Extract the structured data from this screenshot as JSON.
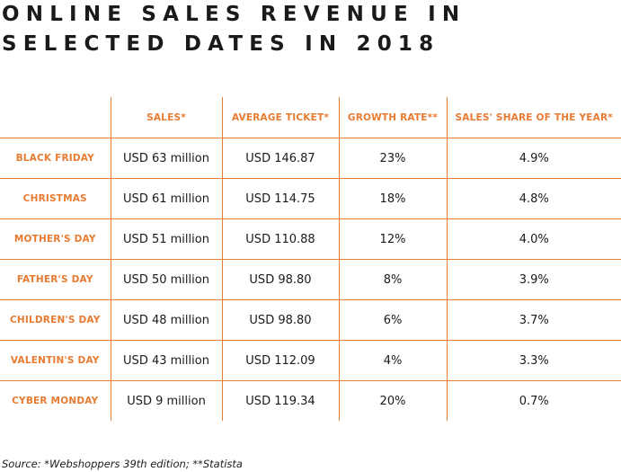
{
  "title": {
    "line1": "ONLINE SALES REVENUE IN",
    "line2": "SELECTED DATES IN 2018"
  },
  "table": {
    "headers": [
      "",
      "SALES*",
      "AVERAGE TICKET*",
      "GROWTH RATE**",
      "SALES' SHARE OF THE YEAR*"
    ],
    "rows": [
      {
        "date": "BLACK FRIDAY",
        "sales": "USD 63 million",
        "avg_ticket": "USD 146.87",
        "growth": "23%",
        "share": "4.9%"
      },
      {
        "date": "CHRISTMAS",
        "sales": "USD 61 million",
        "avg_ticket": "USD 114.75",
        "growth": "18%",
        "share": "4.8%"
      },
      {
        "date": "MOTHER'S DAY",
        "sales": "USD 51 million",
        "avg_ticket": "USD 110.88",
        "growth": "12%",
        "share": "4.0%"
      },
      {
        "date": "FATHER'S DAY",
        "sales": "USD 50 million",
        "avg_ticket": "USD 98.80",
        "growth": "8%",
        "share": "3.9%"
      },
      {
        "date": "CHILDREN'S DAY",
        "sales": "USD 48 million",
        "avg_ticket": "USD 98.80",
        "growth": "6%",
        "share": "3.7%"
      },
      {
        "date": "VALENTIN'S DAY",
        "sales": "USD 43 million",
        "avg_ticket": "USD 112.09",
        "growth": "4%",
        "share": "3.3%"
      },
      {
        "date": "CYBER MONDAY",
        "sales": "USD 9 million",
        "avg_ticket": "USD 119.34",
        "growth": "20%",
        "share": "0.7%"
      }
    ]
  },
  "source": "Source: *Webshoppers 39th edition; **Statista",
  "colors": {
    "accent": "#e87b32",
    "text": "#1a1a1a"
  }
}
